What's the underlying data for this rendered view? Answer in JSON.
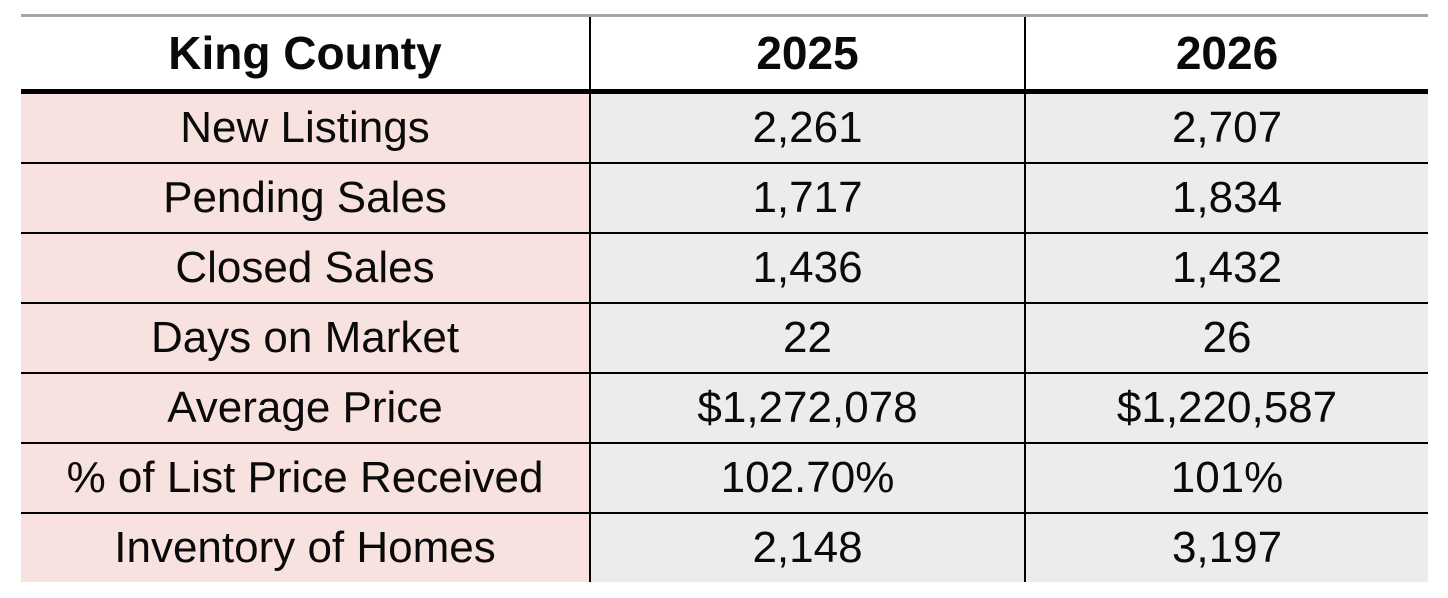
{
  "title": "King County",
  "table": {
    "header": [
      "King County",
      "2025",
      "2026"
    ],
    "rows": [
      {
        "label": "New Listings",
        "y2025": "2,261",
        "y2026": "2,707"
      },
      {
        "label": "Pending Sales",
        "y2025": "1,717",
        "y2026": "1,834"
      },
      {
        "label": "Closed Sales",
        "y2025": "1,436",
        "y2026": "1,432"
      },
      {
        "label": "Days on Market",
        "y2025": "22",
        "y2026": "26"
      },
      {
        "label": "Average Price",
        "y2025": "$1,272,078",
        "y2026": "$1,220,587"
      },
      {
        "label": "% of List Price Received",
        "y2025": "102.70%",
        "y2026": "101%"
      },
      {
        "label": "Inventory of Homes",
        "y2025": "2,148",
        "y2026": "3,197"
      }
    ]
  },
  "colors": {
    "background": "#ffffff",
    "label_column_bg": "#f8e2df",
    "value_column_bg": "#edeceb",
    "border": "#000000",
    "top_rule": "#a6a6a6",
    "text": "#0a0a0a"
  },
  "chart_data": {
    "type": "table",
    "title": "King County",
    "columns": [
      "King County",
      "2025",
      "2026"
    ],
    "rows": [
      [
        "New Listings",
        "2,261",
        "2,707"
      ],
      [
        "Pending Sales",
        "1,717",
        "1,834"
      ],
      [
        "Closed Sales",
        "1,436",
        "1,432"
      ],
      [
        "Days on Market",
        "22",
        "26"
      ],
      [
        "Average Price",
        "$1,272,078",
        "$1,220,587"
      ],
      [
        "% of List Price Received",
        "102.70%",
        "101%"
      ],
      [
        "Inventory of Homes",
        "2,148",
        "3,197"
      ]
    ]
  }
}
